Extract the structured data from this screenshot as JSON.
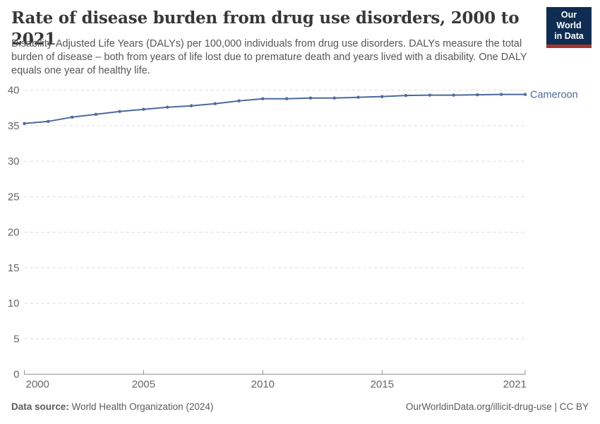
{
  "header": {
    "logo": {
      "line1": "Our World",
      "line2": "in Data"
    },
    "title": "Rate of disease burden from drug use disorders, 2000 to 2021",
    "subtitle": "Disability-Adjusted Life Years (DALYs) per 100,000 individuals from drug use disorders. DALYs measure the total burden of disease – both from years of life lost due to premature death and years lived with a disability. One DALY equals one year of healthy life."
  },
  "chart_data": {
    "type": "line",
    "title": "Rate of disease burden from drug use disorders, 2000 to 2021",
    "xlabel": "",
    "ylabel": "DALYs per 100,000 individuals",
    "x": [
      2000,
      2001,
      2002,
      2003,
      2004,
      2005,
      2006,
      2007,
      2008,
      2009,
      2010,
      2011,
      2012,
      2013,
      2014,
      2015,
      2016,
      2017,
      2018,
      2019,
      2020,
      2021
    ],
    "series": [
      {
        "name": "Cameroon",
        "color": "#4C6A9C",
        "values": [
          35.3,
          35.6,
          36.2,
          36.6,
          37.0,
          37.3,
          37.6,
          37.8,
          38.1,
          38.5,
          38.8,
          38.8,
          38.9,
          38.9,
          39.0,
          39.1,
          39.25,
          39.3,
          39.3,
          39.35,
          39.4,
          39.4
        ]
      }
    ],
    "xlim": [
      2000,
      2021
    ],
    "ylim": [
      0,
      40
    ],
    "x_ticks": [
      2000,
      2005,
      2010,
      2015,
      2021
    ],
    "y_ticks": [
      0,
      5,
      10,
      15,
      20,
      25,
      30,
      35,
      40
    ],
    "grid": "horizontal-dashed",
    "legend_position": "line-end-label"
  },
  "footer": {
    "datasource_bold": "Data source:",
    "datasource_text": "World Health Organization (2024)",
    "credit": "OurWorldinData.org/illicit-drug-use | CC BY"
  },
  "colors": {
    "line": "#4C6A9C",
    "gridline": "#dadada",
    "axis_line": "#8f8f8f",
    "axis_text": "#666666",
    "title_text": "#373737",
    "subtitle_text": "#565656",
    "footer_text": "#5b5b5b",
    "logo_bg": "#0f2d52",
    "logo_stripe": "#a8352b"
  }
}
